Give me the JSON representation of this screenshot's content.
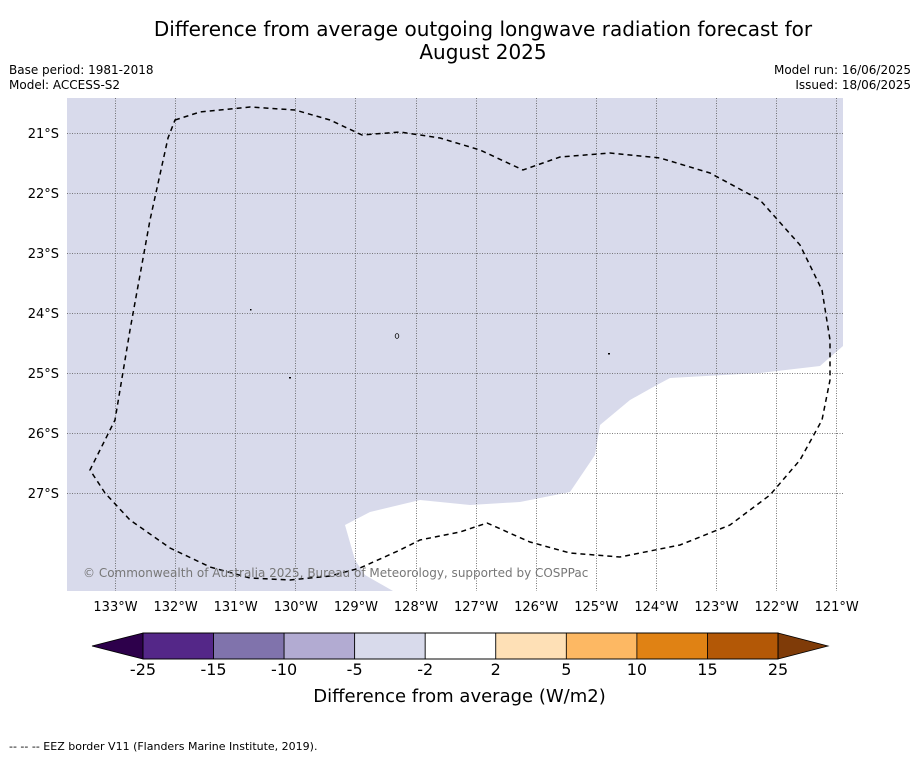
{
  "title_line1": "Difference from average outgoing longwave radiation forecast for",
  "title_line2": "August 2025",
  "base_period": "Base period: 1981-2018",
  "model": "Model: ACCESS-S2",
  "model_run": "Model run: 16/06/2025",
  "issued": "Issued: 18/06/2025",
  "copyright": "© Commonwealth of Australia 2025, Bureau of Meteorology, supported by COSPPac",
  "lon_labels": [
    "133°W",
    "132°W",
    "131°W",
    "130°W",
    "129°W",
    "128°W",
    "127°W",
    "126°W",
    "125°W",
    "124°W",
    "123°W",
    "122°W",
    "121°W"
  ],
  "lat_labels": [
    "21°S",
    "22°S",
    "23°S",
    "24°S",
    "25°S",
    "26°S",
    "27°S"
  ],
  "colorbar": {
    "title": "Difference from average (W/m2)",
    "ticks": [
      "-25",
      "-15",
      "-10",
      "-5",
      "-2",
      "2",
      "5",
      "10",
      "15",
      "25"
    ],
    "colors": {
      "below_min": "#2d004b",
      "c1": "#542788",
      "c2": "#8073ac",
      "c3": "#b2abd2",
      "c4": "#d8daeb",
      "c5": "#ffffff",
      "c6": "#fee0b6",
      "c7": "#fdb863",
      "c8": "#e08214",
      "c9": "#b35806",
      "above_max": "#7f3b08"
    }
  },
  "map_fill_color": "#d8daeb",
  "footer": "--  --  -- EEZ border V11 (Flanders Marine Institute, 2019)."
}
